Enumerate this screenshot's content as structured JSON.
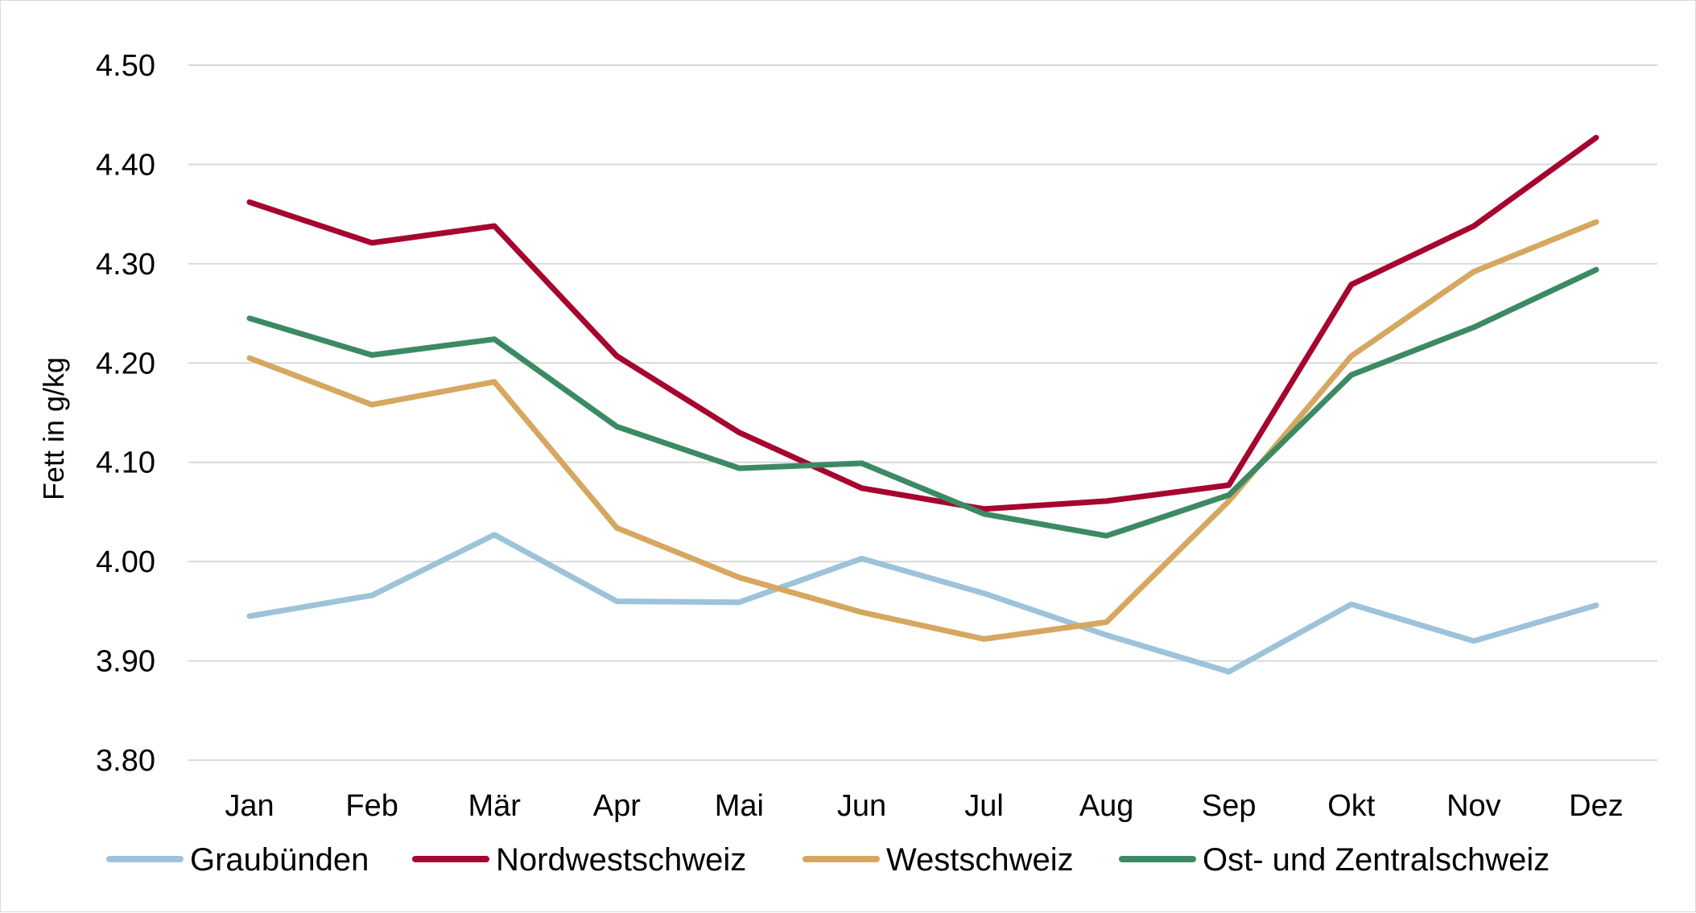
{
  "chart_data": {
    "type": "line",
    "ylabel": "Fett in g/kg",
    "xlabel": "",
    "ylim": [
      3.8,
      4.5
    ],
    "ytick_values": [
      3.8,
      3.9,
      4.0,
      4.1,
      4.2,
      4.3,
      4.4,
      4.5
    ],
    "ytick_labels": [
      "3.80",
      "3.90",
      "4.00",
      "4.10",
      "4.20",
      "4.30",
      "4.40",
      "4.50"
    ],
    "grid": true,
    "legend_position": "bottom",
    "categories": [
      "Jan",
      "Feb",
      "Mär",
      "Apr",
      "Mai",
      "Jun",
      "Jul",
      "Aug",
      "Sep",
      "Okt",
      "Nov",
      "Dez"
    ],
    "series": [
      {
        "name": "Graubünden",
        "color": "#9dc3d9",
        "values": [
          3.945,
          3.966,
          4.027,
          3.96,
          3.959,
          4.003,
          3.968,
          3.926,
          3.889,
          3.957,
          3.92,
          3.956
        ]
      },
      {
        "name": "Nordwestschweiz",
        "color": "#a5052e",
        "values": [
          4.362,
          4.321,
          4.338,
          4.207,
          4.13,
          4.074,
          4.053,
          4.061,
          4.077,
          4.279,
          4.338,
          4.427
        ]
      },
      {
        "name": "Westschweiz",
        "color": "#d6a760",
        "values": [
          4.205,
          4.158,
          4.181,
          4.034,
          3.984,
          3.949,
          3.922,
          3.939,
          4.061,
          4.207,
          4.292,
          4.342
        ]
      },
      {
        "name": "Ost- und Zentralschweiz",
        "color": "#3c8a63",
        "values": [
          4.245,
          4.208,
          4.224,
          4.136,
          4.094,
          4.099,
          4.048,
          4.026,
          4.067,
          4.188,
          4.236,
          4.294
        ]
      }
    ]
  }
}
